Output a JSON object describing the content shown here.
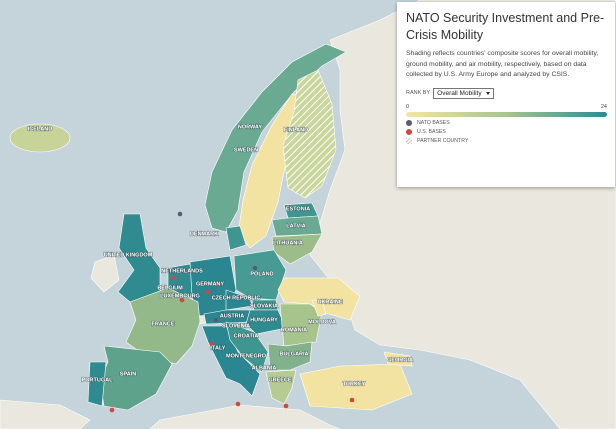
{
  "panel": {
    "title": "NATO Security Investment and Pre-Crisis Mobility",
    "description": "Shading reflects countries' composite scores for overall mobility, ground mobility, and air mobility, respectively, based on data collected by U.S. Army Europe and analyzed by CSIS.",
    "rank_by_label": "RANK BY",
    "rank_by_value": "Overall Mobility",
    "scale_min": 0,
    "scale_max": 24,
    "legend": [
      "NATO BASES",
      "U.S. BASES",
      "PARTNER COUNTRY"
    ]
  },
  "countries": [
    "ICELAND",
    "NORWAY",
    "SWEDEN",
    "FINLAND",
    "ESTONIA",
    "LATVIA",
    "LITHUANIA",
    "DENMARK",
    "UNITED KINGDOM",
    "NETHERLANDS",
    "BELGIUM",
    "LUXEMBOURG",
    "GERMANY",
    "POLAND",
    "CZECH REPUBLIC",
    "SLOVAKIA",
    "AUSTRIA",
    "HUNGARY",
    "SLOVENIA",
    "CROATIA",
    "ROMANIA",
    "MOLDOVA",
    "UKRAINE",
    "FRANCE",
    "ITALY",
    "MONTENEGRO",
    "BULGARIA",
    "ALBANIA",
    "GREECE",
    "TURKEY",
    "GEORGIA",
    "SPAIN",
    "PORTUGAL"
  ]
}
